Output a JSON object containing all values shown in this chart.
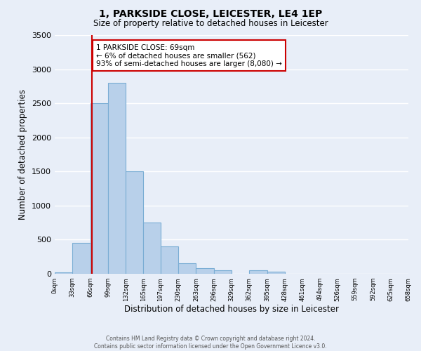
{
  "title": "1, PARKSIDE CLOSE, LEICESTER, LE4 1EP",
  "subtitle": "Size of property relative to detached houses in Leicester",
  "xlabel": "Distribution of detached houses by size in Leicester",
  "ylabel": "Number of detached properties",
  "bar_color": "#b8d0ea",
  "bar_edge_color": "#7aadd4",
  "background_color": "#e8eef8",
  "grid_color": "#ffffff",
  "annotation_box_color": "#cc0000",
  "property_line_color": "#cc0000",
  "property_value": 69,
  "annotation_text_line1": "1 PARKSIDE CLOSE: 69sqm",
  "annotation_text_line2": "← 6% of detached houses are smaller (562)",
  "annotation_text_line3": "93% of semi-detached houses are larger (8,080) →",
  "bins": [
    0,
    33,
    66,
    99,
    132,
    165,
    197,
    230,
    263,
    296,
    329,
    362,
    395,
    428,
    461,
    494,
    526,
    559,
    592,
    625,
    658
  ],
  "bin_labels": [
    "0sqm",
    "33sqm",
    "66sqm",
    "99sqm",
    "132sqm",
    "165sqm",
    "197sqm",
    "230sqm",
    "263sqm",
    "296sqm",
    "329sqm",
    "362sqm",
    "395sqm",
    "428sqm",
    "461sqm",
    "494sqm",
    "526sqm",
    "559sqm",
    "592sqm",
    "625sqm",
    "658sqm"
  ],
  "counts": [
    20,
    450,
    2500,
    2800,
    1500,
    750,
    400,
    150,
    80,
    50,
    0,
    50,
    30,
    0,
    0,
    0,
    0,
    0,
    0,
    0
  ],
  "ylim": [
    0,
    3500
  ],
  "yticks": [
    0,
    500,
    1000,
    1500,
    2000,
    2500,
    3000,
    3500
  ],
  "footer_line1": "Contains HM Land Registry data © Crown copyright and database right 2024.",
  "footer_line2": "Contains public sector information licensed under the Open Government Licence v3.0."
}
